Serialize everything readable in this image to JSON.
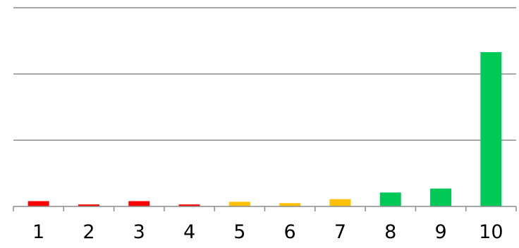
{
  "chart_data": {
    "type": "bar",
    "categories": [
      "1",
      "2",
      "3",
      "4",
      "5",
      "6",
      "7",
      "8",
      "9",
      "10"
    ],
    "values": [
      0.8,
      0.3,
      0.8,
      0.3,
      0.7,
      0.5,
      1.1,
      2.1,
      2.7,
      23.3
    ],
    "colors": [
      "#ff0000",
      "#ff0000",
      "#ff0000",
      "#ff0000",
      "#ffc000",
      "#ffc000",
      "#ffc000",
      "#00c957",
      "#00c957",
      "#00c957"
    ],
    "ylim": [
      0,
      30
    ],
    "yticks": [
      0,
      10,
      20,
      30
    ],
    "grid": true,
    "title": "",
    "xlabel": "",
    "ylabel": ""
  }
}
